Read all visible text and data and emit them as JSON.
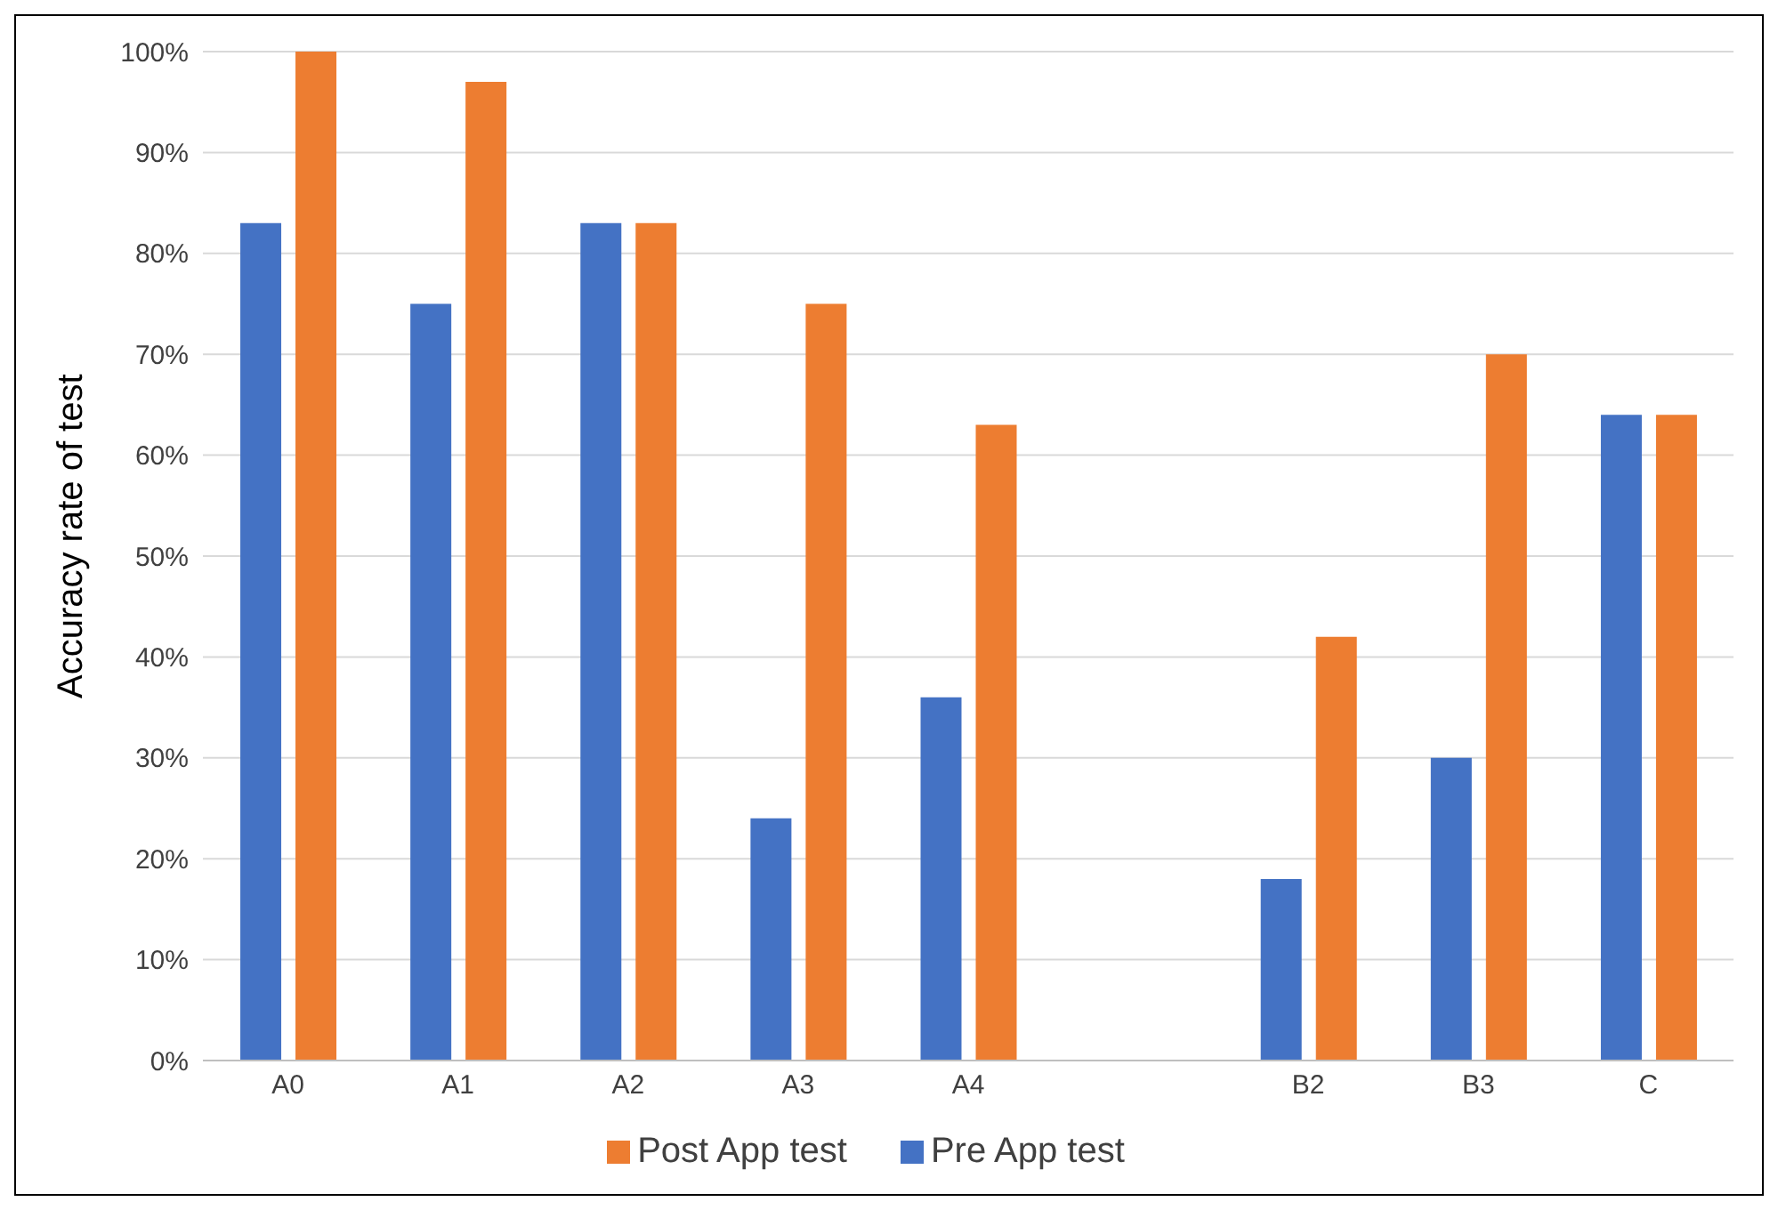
{
  "chart_data": {
    "type": "bar",
    "ylabel": "Accuracy rate of test",
    "categories": [
      "A0",
      "A1",
      "A2",
      "A3",
      "A4",
      null,
      "B2",
      "B3",
      "C"
    ],
    "series": [
      {
        "name": "Pre App test",
        "color": "#4472c4",
        "values": [
          83,
          75,
          83,
          24,
          36,
          null,
          18,
          30,
          64
        ]
      },
      {
        "name": "Post App test",
        "color": "#ed7d31",
        "values": [
          100,
          97,
          83,
          75,
          63,
          null,
          42,
          70,
          64
        ]
      }
    ],
    "ylim": [
      0,
      100
    ],
    "yticks": [
      {
        "value": 0,
        "label": "0%"
      },
      {
        "value": 10,
        "label": "10%"
      },
      {
        "value": 20,
        "label": "20%"
      },
      {
        "value": 30,
        "label": "30%"
      },
      {
        "value": 40,
        "label": "40%"
      },
      {
        "value": 50,
        "label": "50%"
      },
      {
        "value": 60,
        "label": "60%"
      },
      {
        "value": 70,
        "label": "70%"
      },
      {
        "value": 80,
        "label": "80%"
      },
      {
        "value": 90,
        "label": "90%"
      },
      {
        "value": 100,
        "label": "100%"
      }
    ],
    "grid": "y",
    "legend": "bottom"
  }
}
